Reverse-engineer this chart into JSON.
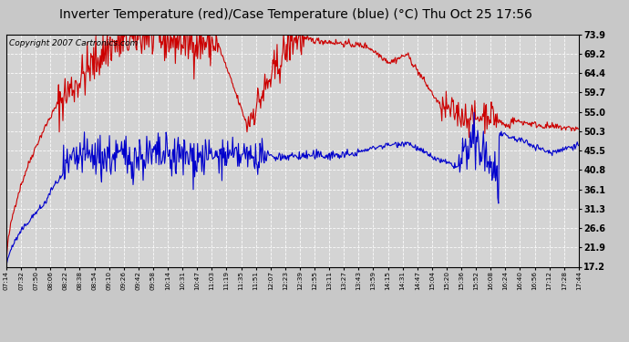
{
  "title": "Inverter Temperature (red)/Case Temperature (blue) (°C) Thu Oct 25 17:56",
  "copyright": "Copyright 2007 Cartronics.com",
  "y_ticks": [
    17.2,
    21.9,
    26.6,
    31.3,
    36.1,
    40.8,
    45.5,
    50.3,
    55.0,
    59.7,
    64.4,
    69.2,
    73.9
  ],
  "ylim": [
    17.2,
    73.9
  ],
  "x_labels": [
    "07:14",
    "07:32",
    "07:50",
    "08:06",
    "08:22",
    "08:38",
    "08:54",
    "09:10",
    "09:26",
    "09:42",
    "09:58",
    "10:14",
    "10:31",
    "10:47",
    "11:03",
    "11:19",
    "11:35",
    "11:51",
    "12:07",
    "12:23",
    "12:39",
    "12:55",
    "13:11",
    "13:27",
    "13:43",
    "13:59",
    "14:15",
    "14:31",
    "14:47",
    "15:04",
    "15:20",
    "15:36",
    "15:52",
    "16:08",
    "16:24",
    "16:40",
    "16:56",
    "17:12",
    "17:28",
    "17:44"
  ],
  "bg_color": "#d4d4d4",
  "grid_color": "#ffffff",
  "red_color": "#cc0000",
  "blue_color": "#0000cc",
  "fig_bg": "#c8c8c8",
  "title_fontsize": 10,
  "copyright_fontsize": 6.5
}
